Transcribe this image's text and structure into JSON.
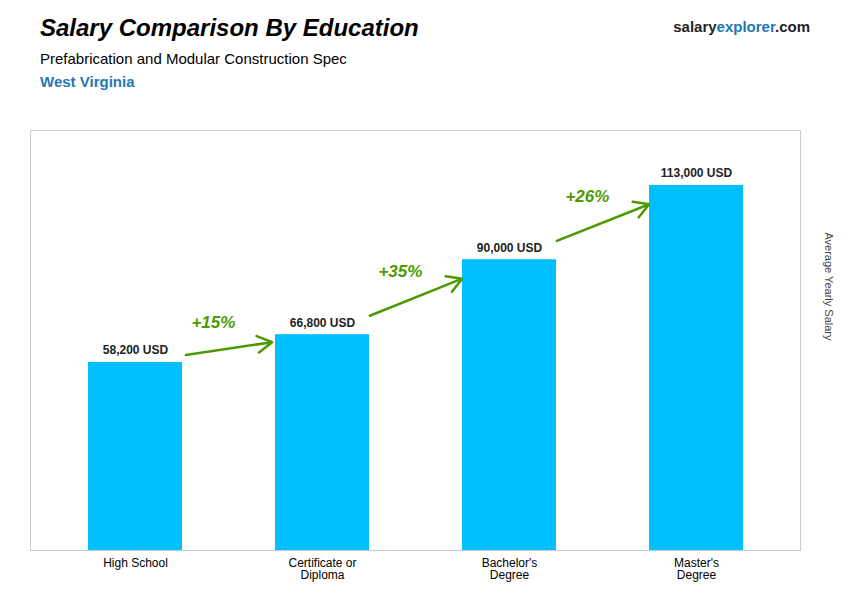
{
  "chart_data": {
    "type": "bar",
    "title": "Salary Comparison By Education",
    "subtitle": "Prefabrication and Modular Construction Spec",
    "location": "West Virginia",
    "brand": [
      "salary",
      "explorer",
      ".com"
    ],
    "ylabel": "Average Yearly Salary",
    "categories": [
      "High School",
      "Certificate or\nDiploma",
      "Bachelor's\nDegree",
      "Master's\nDegree"
    ],
    "values": [
      58200,
      66800,
      90000,
      113000
    ],
    "value_labels": [
      "58,200 USD",
      "66,800 USD",
      "90,000 USD",
      "113,000 USD"
    ],
    "data_labels": true,
    "annotations": [
      "+15%",
      "+35%",
      "+26%"
    ],
    "color": "#00BFFF",
    "ylim": [
      0,
      130000
    ],
    "yticks": [],
    "tick_labels": "x",
    "grid": false
  }
}
